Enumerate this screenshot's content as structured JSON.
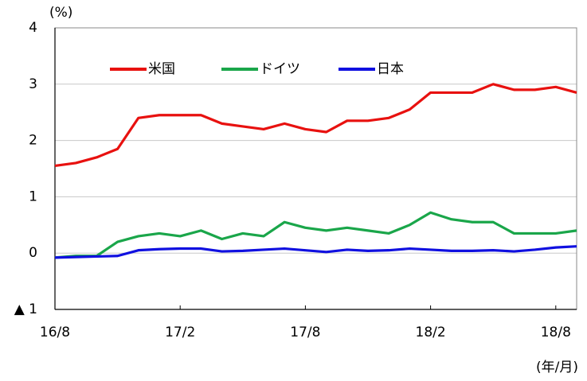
{
  "chart_data": {
    "type": "line",
    "y_label": "(%)",
    "x_label": "(年/月)",
    "categories": [
      "16/8",
      null,
      null,
      null,
      null,
      null,
      "17/2",
      null,
      null,
      null,
      null,
      null,
      "17/8",
      null,
      null,
      null,
      null,
      null,
      "18/2",
      null,
      null,
      null,
      null,
      null,
      "18/8",
      null
    ],
    "series": [
      {
        "name": "米国",
        "color": "#e8110f",
        "values": [
          1.55,
          1.6,
          1.7,
          1.85,
          2.4,
          2.45,
          2.45,
          2.45,
          2.3,
          2.25,
          2.2,
          2.3,
          2.2,
          2.15,
          2.35,
          2.35,
          2.4,
          2.55,
          2.85,
          2.85,
          2.85,
          3.0,
          2.9,
          2.9,
          2.95,
          2.85
        ]
      },
      {
        "name": "ドイツ",
        "color": "#1aa64a",
        "values": [
          -0.08,
          -0.05,
          -0.05,
          0.2,
          0.3,
          0.35,
          0.3,
          0.4,
          0.25,
          0.35,
          0.3,
          0.55,
          0.45,
          0.4,
          0.45,
          0.4,
          0.35,
          0.5,
          0.72,
          0.6,
          0.55,
          0.55,
          0.35,
          0.35,
          0.35,
          0.4
        ]
      },
      {
        "name": "日本",
        "color": "#1010e0",
        "values": [
          -0.08,
          -0.07,
          -0.06,
          -0.05,
          0.05,
          0.07,
          0.08,
          0.08,
          0.03,
          0.04,
          0.06,
          0.08,
          0.05,
          0.02,
          0.06,
          0.04,
          0.05,
          0.08,
          0.06,
          0.04,
          0.04,
          0.05,
          0.03,
          0.06,
          0.1,
          0.12
        ]
      }
    ],
    "ylim": [
      -1,
      4
    ],
    "yticks": [
      {
        "value": -1,
        "label": "▲ 1"
      },
      0,
      1,
      2,
      3,
      4
    ],
    "grid": true
  }
}
